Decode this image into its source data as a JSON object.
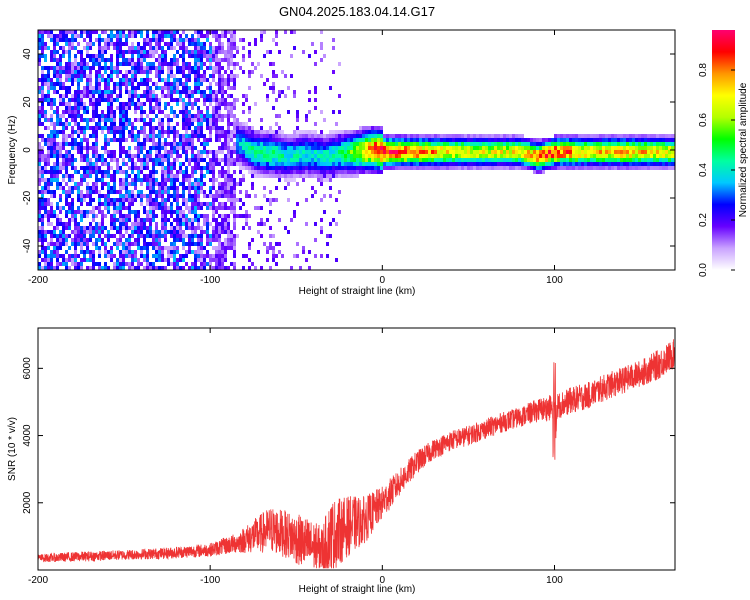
{
  "chart_data": [
    {
      "type": "heatmap",
      "title": "GN04.2025.183.04.14.G17",
      "xlabel": "Height of straight line (km)",
      "ylabel": "Frequency (Hz)",
      "xlim": [
        -200,
        170
      ],
      "ylim": [
        -50,
        50
      ],
      "xticks": [
        -200,
        -100,
        0,
        100
      ],
      "yticks": [
        -40,
        -20,
        0,
        20,
        40
      ],
      "colorbar": {
        "label": "Normalized spectral amplitude",
        "range": [
          0,
          0.96
        ],
        "ticks": [
          0.0,
          0.2,
          0.4,
          0.6,
          0.8
        ],
        "colors": [
          "#ffffff",
          "#c9a2ff",
          "#6600ff",
          "#0000ff",
          "#00c8ff",
          "#00ffa0",
          "#00ff00",
          "#b4ff00",
          "#ffff00",
          "#ff9600",
          "#ff0000",
          "#ff0070"
        ]
      },
      "ridge": {
        "description_values": "dominant frequency vs height",
        "x": [
          -85,
          -75,
          -65,
          -55,
          -45,
          -35,
          -25,
          -15,
          -5,
          0,
          20,
          40,
          60,
          80,
          90,
          100,
          120,
          140,
          165
        ],
        "y": [
          4,
          0,
          -1,
          -2,
          -1,
          -2,
          -1,
          0,
          1,
          0,
          0,
          0,
          0,
          0,
          -2,
          0,
          0,
          0,
          0
        ],
        "amplitude": [
          0.35,
          0.45,
          0.45,
          0.4,
          0.4,
          0.4,
          0.45,
          0.6,
          0.85,
          0.9,
          0.8,
          0.7,
          0.65,
          0.7,
          0.8,
          0.85,
          0.7,
          0.75,
          0.7
        ]
      },
      "noise_region": {
        "x_range": [
          -200,
          -85
        ],
        "amplitude": 0.22
      }
    },
    {
      "type": "line",
      "xlabel": "Height of straight line (km)",
      "ylabel": "SNR (10 * v/v)",
      "xlim": [
        -200,
        170
      ],
      "ylim": [
        0,
        7200
      ],
      "xticks": [
        -200,
        -100,
        0,
        100
      ],
      "yticks": [
        2000,
        4000,
        6000
      ],
      "series": [
        {
          "color": "#ee3333",
          "x": [
            -200,
            -175,
            -150,
            -125,
            -100,
            -85,
            -75,
            -65,
            -55,
            -45,
            -35,
            -30,
            -20,
            -10,
            0,
            10,
            20,
            30,
            40,
            50,
            60,
            70,
            80,
            90,
            100,
            110,
            120,
            130,
            140,
            150,
            160,
            170
          ],
          "y": [
            350,
            400,
            450,
            500,
            600,
            800,
            1000,
            1200,
            1050,
            800,
            600,
            1000,
            1300,
            1500,
            2000,
            2600,
            3200,
            3600,
            3850,
            4000,
            4200,
            4400,
            4550,
            4750,
            4850,
            5050,
            5200,
            5450,
            5650,
            5850,
            6100,
            6450
          ],
          "noise": [
            120,
            150,
            150,
            170,
            200,
            300,
            500,
            700,
            700,
            800,
            700,
            1100,
            900,
            700,
            500,
            400,
            350,
            300,
            300,
            300,
            300,
            300,
            300,
            350,
            400,
            400,
            400,
            400,
            400,
            400,
            450,
            450
          ]
        }
      ]
    }
  ]
}
